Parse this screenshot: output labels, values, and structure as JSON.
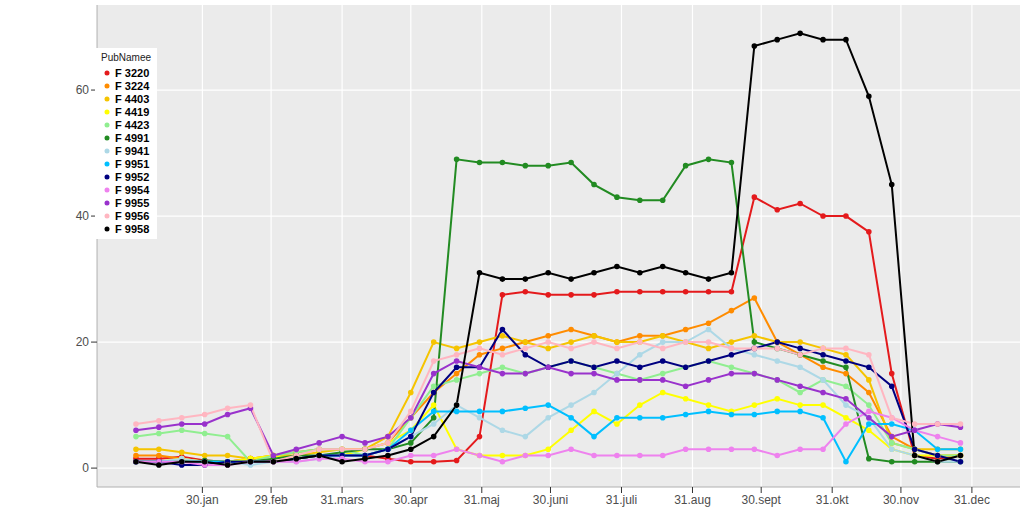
{
  "chart_data": {
    "type": "line",
    "marker": "circle",
    "legend_title": "PubNamee",
    "legend": "top-left",
    "grid": true,
    "xlim": [
      -16,
      387
    ],
    "xticks": [
      {
        "value": 30,
        "label": "30.jan"
      },
      {
        "value": 60,
        "label": "29.feb"
      },
      {
        "value": 91,
        "label": "31.mars"
      },
      {
        "value": 121,
        "label": "30.apr"
      },
      {
        "value": 152,
        "label": "31.maj"
      },
      {
        "value": 182,
        "label": "30.juni"
      },
      {
        "value": 213,
        "label": "31.juli"
      },
      {
        "value": 244,
        "label": "31.aug"
      },
      {
        "value": 274,
        "label": "30.sept"
      },
      {
        "value": 305,
        "label": "31.okt"
      },
      {
        "value": 335,
        "label": "30.nov"
      },
      {
        "value": 366,
        "label": "31.dec"
      }
    ],
    "ylim": [
      -3,
      73.5
    ],
    "yticks": [
      0,
      20,
      40,
      60
    ],
    "x": [
      1,
      11,
      21,
      31,
      41,
      51,
      61,
      71,
      81,
      91,
      101,
      111,
      121,
      131,
      141,
      151,
      161,
      171,
      181,
      191,
      201,
      211,
      221,
      231,
      241,
      251,
      261,
      271,
      281,
      291,
      301,
      311,
      321,
      331,
      341,
      351,
      361
    ],
    "series": [
      {
        "name": "F 3220",
        "color": "#E41A1C",
        "values": [
          1.5,
          1.5,
          1.8,
          1.2,
          1,
          1.5,
          1,
          1.5,
          2,
          2,
          2,
          1.5,
          1,
          1,
          1.2,
          5,
          27.5,
          28,
          27.5,
          27.5,
          27.5,
          28,
          28,
          28,
          28,
          28,
          28,
          43,
          41,
          42,
          40,
          40,
          37.5,
          15,
          2,
          1.5,
          2
        ]
      },
      {
        "name": "F 3224",
        "color": "#FF8C00",
        "values": [
          2,
          2,
          1.5,
          1,
          1,
          1.5,
          2,
          2.5,
          3,
          3,
          3,
          4,
          8,
          12,
          15,
          18,
          19,
          20,
          21,
          22,
          21,
          20,
          21,
          21,
          22,
          23,
          25,
          27,
          20,
          18,
          16,
          15,
          12,
          5,
          3,
          2,
          2
        ]
      },
      {
        "name": "F 4403",
        "color": "#F5C400",
        "values": [
          3,
          3,
          2.5,
          2,
          2,
          1.5,
          2,
          2,
          2.5,
          3,
          3,
          5,
          12,
          20,
          19,
          20,
          21,
          20,
          19,
          20,
          21,
          20,
          20,
          21,
          20,
          19,
          20,
          21,
          20,
          20,
          19,
          18,
          14,
          4,
          3,
          3,
          3
        ]
      },
      {
        "name": "F 4419",
        "color": "#FFFF00",
        "values": [
          1,
          1,
          1.5,
          1,
          1,
          1.5,
          2,
          1.5,
          2,
          2,
          3,
          4,
          6,
          10,
          3,
          2,
          2,
          2,
          3,
          6,
          9,
          7,
          10,
          12,
          11,
          10,
          9,
          10,
          11,
          10,
          10,
          8,
          6,
          3,
          2,
          2,
          2
        ]
      },
      {
        "name": "F 4423",
        "color": "#90EE90",
        "values": [
          5,
          5.5,
          6,
          5.5,
          5,
          1,
          2,
          2.5,
          3,
          3,
          2,
          3,
          8,
          13,
          14,
          15,
          16,
          15,
          16,
          17,
          16,
          15,
          14,
          15,
          16,
          17,
          16,
          15,
          14,
          12,
          14,
          13,
          10,
          4,
          3,
          2,
          2
        ]
      },
      {
        "name": "F 4991",
        "color": "#228B22",
        "values": [
          1,
          1,
          1,
          1.2,
          1,
          1,
          1.5,
          2,
          2,
          2.5,
          3,
          3,
          4,
          8,
          49,
          48.5,
          48.5,
          48,
          48,
          48.5,
          45,
          43,
          42.5,
          42.5,
          48,
          49,
          48.5,
          20,
          19,
          18,
          17,
          16,
          1.5,
          1,
          1,
          1,
          1
        ]
      },
      {
        "name": "F 9941",
        "color": "#ADD8E6",
        "values": [
          1,
          1,
          1.5,
          1,
          1,
          0.5,
          1,
          1,
          1.5,
          2,
          2,
          3,
          5,
          7,
          10,
          8,
          6,
          5,
          8,
          10,
          12,
          15,
          18,
          20,
          20,
          22,
          19,
          18,
          17,
          16,
          14,
          10,
          8,
          3,
          2,
          1,
          1
        ]
      },
      {
        "name": "F 9951",
        "color": "#00BFFF",
        "values": [
          1,
          1,
          1,
          1,
          1,
          1,
          1,
          1.5,
          2,
          2,
          2,
          3,
          6,
          9,
          9,
          9,
          9,
          9.5,
          10,
          8,
          5,
          8,
          8,
          8,
          8.5,
          9,
          8.5,
          8.5,
          9,
          9,
          8,
          1,
          7,
          7,
          6,
          3,
          3
        ]
      },
      {
        "name": "F 9952",
        "color": "#000080",
        "values": [
          1,
          1,
          0.5,
          0.5,
          1,
          1,
          1,
          1.5,
          2,
          2,
          2,
          3,
          5,
          12,
          16,
          16,
          22,
          18,
          16,
          17,
          16,
          17,
          16,
          17,
          16,
          17,
          18,
          19,
          20,
          19,
          18,
          17,
          16,
          13,
          3,
          2,
          1
        ]
      },
      {
        "name": "F 9954",
        "color": "#EE82EE",
        "values": [
          1,
          1,
          1,
          0.5,
          0.5,
          1,
          1,
          1,
          1.5,
          1.5,
          1,
          1,
          2,
          2,
          3,
          2,
          1,
          2,
          2,
          3,
          2,
          2,
          2,
          2,
          3,
          3,
          3,
          3,
          2,
          3,
          3,
          7,
          9,
          8,
          6,
          5,
          4
        ]
      },
      {
        "name": "F 9955",
        "color": "#9932CC",
        "values": [
          6,
          6.5,
          7,
          7,
          8.5,
          9.5,
          2,
          3,
          4,
          5,
          4,
          5,
          8,
          15,
          17,
          16,
          15,
          15,
          16,
          15,
          15,
          14,
          14,
          14,
          13,
          14,
          15,
          15,
          14,
          13,
          12,
          11,
          8,
          5,
          6,
          7,
          6.5
        ]
      },
      {
        "name": "F 9956",
        "color": "#FFB6C1",
        "values": [
          7,
          7.5,
          8,
          8.5,
          9.5,
          10,
          1,
          2,
          3,
          3,
          3,
          4,
          9,
          17,
          18,
          19,
          18,
          19,
          20,
          19,
          20,
          19,
          20,
          19,
          20,
          20,
          19,
          19,
          19,
          18,
          19,
          19,
          18,
          8,
          7,
          7,
          7
        ]
      },
      {
        "name": "F 9958",
        "color": "#000000",
        "values": [
          1,
          0.5,
          1,
          1,
          0.5,
          1,
          1,
          1.5,
          2,
          1,
          1.5,
          2,
          3,
          5,
          10,
          31,
          30,
          30,
          31,
          30,
          31,
          32,
          31,
          32,
          31,
          30,
          31,
          67,
          68,
          69,
          68,
          68,
          59,
          45,
          2,
          1,
          2
        ]
      }
    ]
  }
}
